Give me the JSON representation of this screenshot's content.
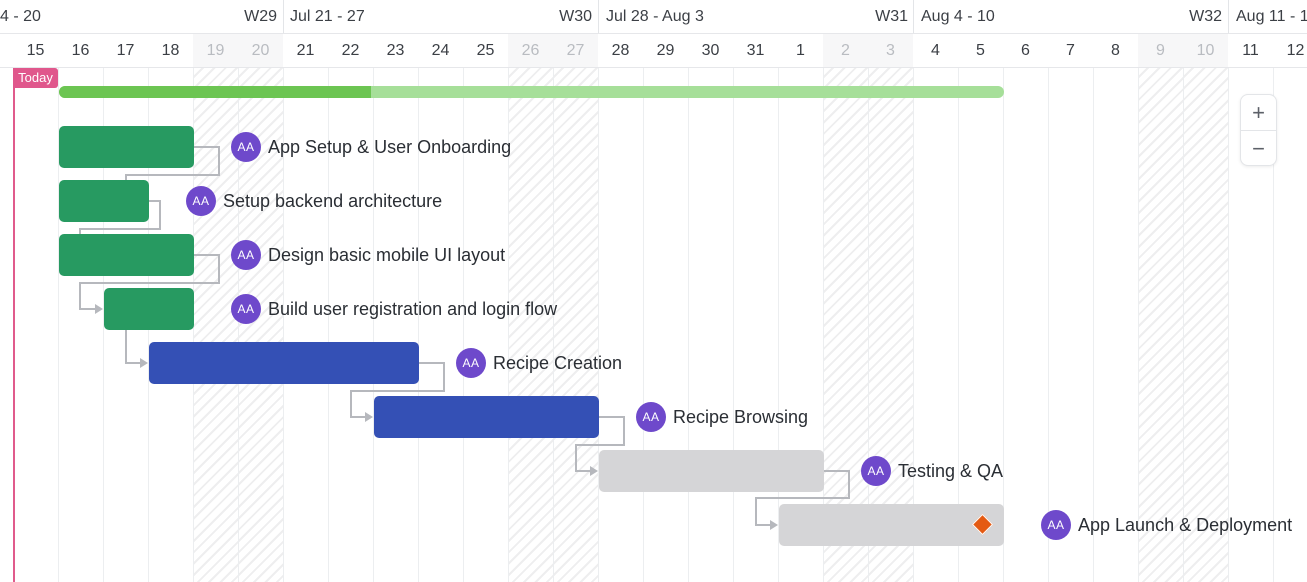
{
  "timeline": {
    "weeks": [
      {
        "label": "4 - 20",
        "week": ""
      },
      {
        "label": "",
        "week": "W29"
      },
      {
        "label": "Jul 21 - 27",
        "week": "W30"
      },
      {
        "label": "Jul 28 - Aug 3",
        "week": "W31"
      },
      {
        "label": "Aug 4 - 10",
        "week": "W32"
      },
      {
        "label": "Aug 11 - 1",
        "week": ""
      }
    ],
    "days": [
      {
        "label": "15",
        "weekend": false
      },
      {
        "label": "16",
        "weekend": false
      },
      {
        "label": "17",
        "weekend": false
      },
      {
        "label": "18",
        "weekend": false
      },
      {
        "label": "19",
        "weekend": true
      },
      {
        "label": "20",
        "weekend": true
      },
      {
        "label": "21",
        "weekend": false
      },
      {
        "label": "22",
        "weekend": false
      },
      {
        "label": "23",
        "weekend": false
      },
      {
        "label": "24",
        "weekend": false
      },
      {
        "label": "25",
        "weekend": false
      },
      {
        "label": "26",
        "weekend": true
      },
      {
        "label": "27",
        "weekend": true
      },
      {
        "label": "28",
        "weekend": false
      },
      {
        "label": "29",
        "weekend": false
      },
      {
        "label": "30",
        "weekend": false
      },
      {
        "label": "31",
        "weekend": false
      },
      {
        "label": "1",
        "weekend": false
      },
      {
        "label": "2",
        "weekend": true
      },
      {
        "label": "3",
        "weekend": true
      },
      {
        "label": "4",
        "weekend": false
      },
      {
        "label": "5",
        "weekend": false
      },
      {
        "label": "6",
        "weekend": false
      },
      {
        "label": "7",
        "weekend": false
      },
      {
        "label": "8",
        "weekend": false
      },
      {
        "label": "9",
        "weekend": true
      },
      {
        "label": "10",
        "weekend": true
      },
      {
        "label": "11",
        "weekend": false
      },
      {
        "label": "12",
        "weekend": false
      }
    ]
  },
  "today_label": "Today",
  "project_progress": 0.33,
  "tasks": [
    {
      "name": "App Setup & User Onboarding",
      "assignee": "AA",
      "color": "green"
    },
    {
      "name": "Setup backend architecture",
      "assignee": "AA",
      "color": "green"
    },
    {
      "name": "Design basic mobile UI layout",
      "assignee": "AA",
      "color": "green"
    },
    {
      "name": "Build user registration and login flow",
      "assignee": "AA",
      "color": "green"
    },
    {
      "name": "Recipe Creation",
      "assignee": "AA",
      "color": "blue"
    },
    {
      "name": "Recipe Browsing",
      "assignee": "AA",
      "color": "blue"
    },
    {
      "name": "Testing & QA",
      "assignee": "AA",
      "color": "gray"
    },
    {
      "name": "App Launch & Deployment",
      "assignee": "AA",
      "color": "gray",
      "milestone": true
    }
  ],
  "zoom": {
    "in_label": "+",
    "out_label": "−"
  },
  "colors": {
    "green": "#279a61",
    "blue": "#3450b5",
    "gray": "#d5d5d7",
    "today": "#e0578c",
    "avatar": "#6e49cb",
    "milestone": "#e45a12"
  }
}
